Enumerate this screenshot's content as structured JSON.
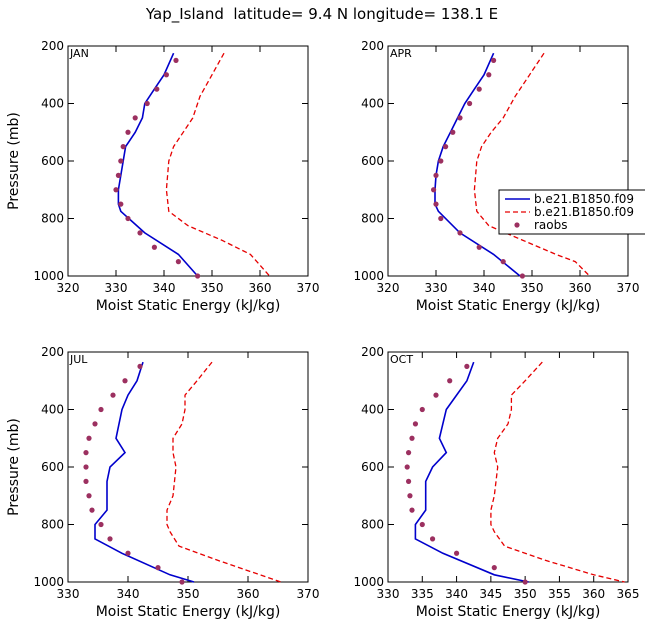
{
  "page_title": "Yap_Island  latitude= 9.4 N longitude= 138.1 E",
  "legend": {
    "entries": [
      {
        "name": "b.e21.B1850.f09",
        "color": "#0000cc",
        "style": "solid"
      },
      {
        "name": "b.e21.B1850.f09",
        "color": "#e60000",
        "style": "dashed"
      },
      {
        "name": "raobs",
        "color": "#9c3060",
        "style": "marker"
      }
    ]
  },
  "chart_data": [
    {
      "type": "line",
      "panel": "JAN",
      "xlabel": "Moist Static Energy (kJ/kg)",
      "ylabel": "Pressure (mb)",
      "xlim": [
        320,
        370
      ],
      "ylim": [
        1000,
        200
      ],
      "xticks": [
        320,
        330,
        340,
        350,
        360,
        370
      ],
      "yticks": [
        200,
        400,
        600,
        800,
        1000
      ],
      "series": [
        {
          "name": "b.e21.B1850.f09",
          "color": "#0000cc",
          "style": "solid",
          "x": [
            342.0,
            340.0,
            338.0,
            336.0,
            335.5,
            334.0,
            332.0,
            331.5,
            331.0,
            330.5,
            330.5,
            331.0,
            336.0,
            343.0,
            347.0
          ],
          "y": [
            225,
            300,
            350,
            400,
            450,
            500,
            550,
            600,
            650,
            700,
            750,
            775,
            850,
            925,
            1000
          ]
        },
        {
          "name": "b.e21.B1850.f09",
          "color": "#e60000",
          "style": "dashed",
          "x": [
            352.5,
            350.0,
            347.5,
            346.0,
            344.0,
            342.0,
            341.0,
            340.5,
            341.0,
            345.0,
            352.0,
            358.0,
            362.0
          ],
          "y": [
            225,
            300,
            375,
            450,
            500,
            550,
            600,
            700,
            775,
            825,
            875,
            925,
            1000
          ]
        },
        {
          "name": "raobs",
          "color": "#9c3060",
          "style": "marker",
          "x": [
            342.5,
            340.5,
            338.5,
            336.5,
            334.0,
            332.5,
            331.5,
            331.0,
            330.5,
            330.0,
            331.0,
            332.5,
            335.0,
            338.0,
            343.0,
            347.0
          ],
          "y": [
            250,
            300,
            350,
            400,
            450,
            500,
            550,
            600,
            650,
            700,
            750,
            800,
            850,
            900,
            950,
            1000
          ]
        }
      ]
    },
    {
      "type": "line",
      "panel": "APR",
      "xlabel": "Moist Static Energy (kJ/kg)",
      "ylabel": "",
      "xlim": [
        320,
        370
      ],
      "ylim": [
        1000,
        200
      ],
      "xticks": [
        320,
        330,
        340,
        350,
        360,
        370
      ],
      "yticks": [
        200,
        400,
        600,
        800,
        1000
      ],
      "series": [
        {
          "name": "b.e21.B1850.f09",
          "color": "#0000cc",
          "style": "solid",
          "x": [
            342.0,
            340.0,
            338.0,
            336.0,
            334.5,
            333.0,
            331.5,
            330.5,
            330.0,
            329.8,
            329.8,
            330.5,
            335.0,
            342.0,
            347.5
          ],
          "y": [
            225,
            300,
            350,
            400,
            450,
            500,
            550,
            600,
            650,
            700,
            750,
            775,
            850,
            925,
            1000
          ]
        },
        {
          "name": "b.e21.B1850.f09",
          "color": "#e60000",
          "style": "dashed",
          "x": [
            352.5,
            349.5,
            346.5,
            344.0,
            341.5,
            339.5,
            338.5,
            338.0,
            338.5,
            341.0,
            348.0,
            355.0,
            359.0,
            362.0
          ],
          "y": [
            225,
            300,
            375,
            450,
            500,
            550,
            600,
            700,
            775,
            825,
            875,
            925,
            950,
            1000
          ]
        },
        {
          "name": "raobs",
          "color": "#9c3060",
          "style": "marker",
          "x": [
            342.0,
            341.0,
            339.0,
            337.0,
            335.0,
            333.5,
            332.0,
            331.0,
            330.0,
            329.5,
            330.0,
            331.0,
            335.0,
            339.0,
            344.0,
            348.0
          ],
          "y": [
            250,
            300,
            350,
            400,
            450,
            500,
            550,
            600,
            650,
            700,
            750,
            800,
            850,
            900,
            950,
            1000
          ]
        }
      ]
    },
    {
      "type": "line",
      "panel": "JUL",
      "xlabel": "Moist Static Energy (kJ/kg)",
      "ylabel": "Pressure (mb)",
      "xlim": [
        330,
        370
      ],
      "ylim": [
        1000,
        200
      ],
      "xticks": [
        330,
        340,
        350,
        360,
        370
      ],
      "yticks": [
        200,
        400,
        600,
        800,
        1000
      ],
      "series": [
        {
          "name": "b.e21.B1850.f09",
          "color": "#0000cc",
          "style": "solid",
          "x": [
            342.5,
            341.5,
            340.0,
            339.0,
            338.0,
            339.5,
            337.0,
            336.5,
            336.5,
            336.5,
            334.5,
            334.5,
            339.0,
            347.0,
            351.0
          ],
          "y": [
            235,
            300,
            350,
            400,
            500,
            550,
            600,
            650,
            700,
            750,
            800,
            850,
            900,
            975,
            1000
          ]
        },
        {
          "name": "b.e21.B1850.f09",
          "color": "#e60000",
          "style": "dashed",
          "x": [
            354.0,
            351.5,
            349.5,
            349.5,
            349.0,
            347.5,
            347.5,
            348.0,
            347.5,
            346.5,
            346.5,
            347.0,
            348.5,
            355.0,
            362.0,
            365.5
          ],
          "y": [
            235,
            300,
            350,
            400,
            450,
            500,
            550,
            600,
            700,
            750,
            800,
            825,
            875,
            925,
            975,
            1000
          ]
        },
        {
          "name": "raobs",
          "color": "#9c3060",
          "style": "marker",
          "x": [
            342.0,
            339.5,
            337.5,
            335.5,
            334.5,
            333.5,
            333.0,
            333.0,
            333.0,
            333.5,
            334.0,
            335.5,
            337.0,
            340.0,
            345.0,
            349.0
          ],
          "y": [
            250,
            300,
            350,
            400,
            450,
            500,
            550,
            600,
            650,
            700,
            750,
            800,
            850,
            900,
            950,
            1000
          ]
        }
      ]
    },
    {
      "type": "line",
      "panel": "OCT",
      "xlabel": "Moist Static Energy (kJ/kg)",
      "ylabel": "",
      "xlim": [
        330,
        365
      ],
      "ylim": [
        1000,
        200
      ],
      "xticks": [
        330,
        335,
        340,
        345,
        350,
        355,
        360,
        365
      ],
      "yticks": [
        200,
        400,
        600,
        800,
        1000
      ],
      "series": [
        {
          "name": "b.e21.B1850.f09",
          "color": "#0000cc",
          "style": "solid",
          "x": [
            342.5,
            341.5,
            340.0,
            338.5,
            337.5,
            338.5,
            336.5,
            335.5,
            335.5,
            335.5,
            334.0,
            334.0,
            338.0,
            345.5,
            350.5
          ],
          "y": [
            235,
            300,
            350,
            400,
            500,
            550,
            600,
            650,
            700,
            750,
            800,
            850,
            900,
            975,
            1000
          ]
        },
        {
          "name": "b.e21.B1850.f09",
          "color": "#e60000",
          "style": "dashed",
          "x": [
            352.5,
            350.0,
            348.0,
            348.0,
            347.5,
            346.0,
            345.5,
            346.0,
            345.5,
            345.0,
            345.0,
            345.5,
            347.0,
            353.0,
            360.0,
            364.5
          ],
          "y": [
            235,
            300,
            350,
            400,
            450,
            500,
            550,
            600,
            700,
            750,
            800,
            825,
            875,
            925,
            975,
            1000
          ]
        },
        {
          "name": "raobs",
          "color": "#9c3060",
          "style": "marker",
          "x": [
            341.5,
            339.0,
            337.0,
            335.0,
            334.0,
            333.5,
            333.0,
            332.8,
            333.0,
            333.2,
            333.5,
            335.0,
            336.5,
            340.0,
            345.5,
            350.0
          ],
          "y": [
            250,
            300,
            350,
            400,
            450,
            500,
            550,
            600,
            650,
            700,
            750,
            800,
            850,
            900,
            950,
            1000
          ]
        }
      ]
    }
  ]
}
